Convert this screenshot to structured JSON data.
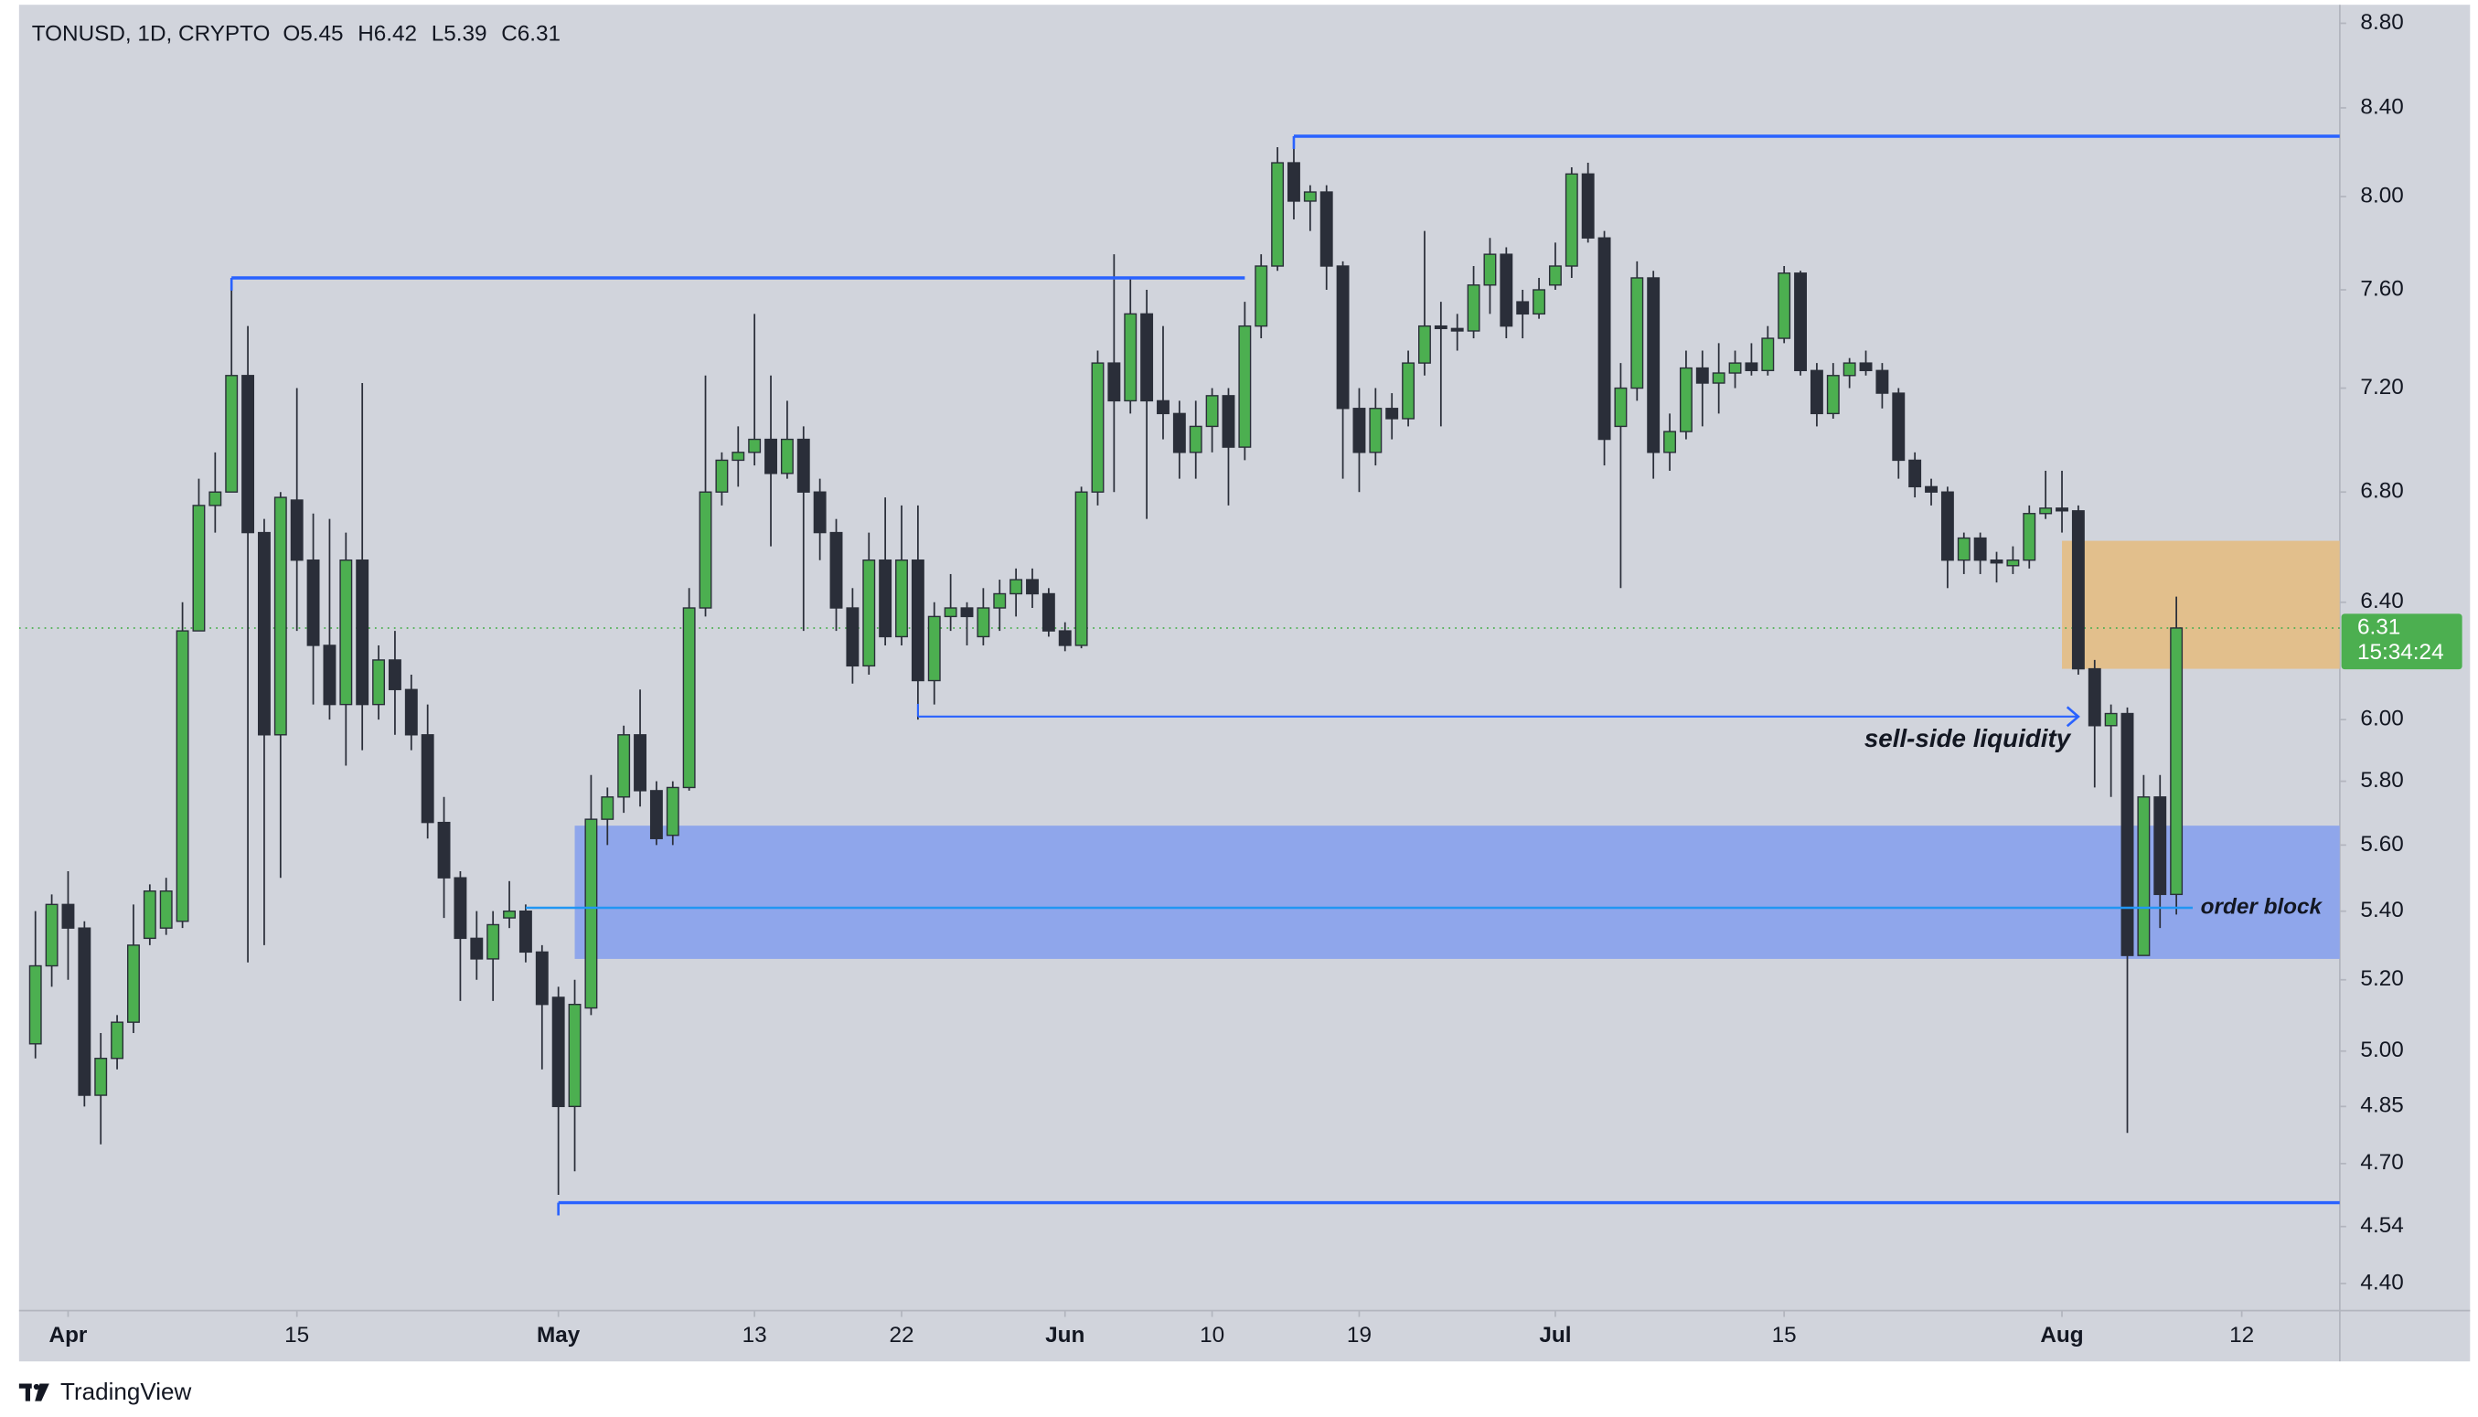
{
  "chart_data": {
    "type": "candlestick",
    "title": "TONUSD, 1D, CRYPTO",
    "header_ohlc": [
      "O5.45",
      "H6.42",
      "L5.39",
      "C6.31"
    ],
    "watermark": "TradingView",
    "log_scale": true,
    "up_color": "#4caf50",
    "down_color": "#2a2e39",
    "wick_color": "#2a2e39",
    "background": "#d1d4dc",
    "x": [
      "Mar 30",
      "Mar 31",
      "Apr 1",
      "Apr 2",
      "Apr 3",
      "Apr 4",
      "Apr 5",
      "Apr 6",
      "Apr 7",
      "Apr 8",
      "Apr 9",
      "Apr 10",
      "Apr 11",
      "Apr 12",
      "Apr 13",
      "Apr 14",
      "Apr 15",
      "Apr 16",
      "Apr 17",
      "Apr 18",
      "Apr 19",
      "Apr 20",
      "Apr 21",
      "Apr 22",
      "Apr 23",
      "Apr 24",
      "Apr 25",
      "Apr 26",
      "Apr 27",
      "Apr 28",
      "Apr 29",
      "Apr 30",
      "May 1",
      "May 2",
      "May 3",
      "May 4",
      "May 5",
      "May 6",
      "May 7",
      "May 8",
      "May 9",
      "May 10",
      "May 11",
      "May 12",
      "May 13",
      "May 14",
      "May 15",
      "May 16",
      "May 17",
      "May 18",
      "May 19",
      "May 20",
      "May 21",
      "May 22",
      "May 23",
      "May 24",
      "May 25",
      "May 26",
      "May 27",
      "May 28",
      "May 29",
      "May 30",
      "May 31",
      "Jun 1",
      "Jun 2",
      "Jun 3",
      "Jun 4",
      "Jun 5",
      "Jun 6",
      "Jun 7",
      "Jun 8",
      "Jun 9",
      "Jun 10",
      "Jun 11",
      "Jun 12",
      "Jun 13",
      "Jun 14",
      "Jun 15",
      "Jun 16",
      "Jun 17",
      "Jun 18",
      "Jun 19",
      "Jun 20",
      "Jun 21",
      "Jun 22",
      "Jun 23",
      "Jun 24",
      "Jun 25",
      "Jun 26",
      "Jun 27",
      "Jun 28",
      "Jun 29",
      "Jun 30",
      "Jul 1",
      "Jul 2",
      "Jul 3",
      "Jul 4",
      "Jul 5",
      "Jul 6",
      "Jul 7",
      "Jul 8",
      "Jul 9",
      "Jul 10",
      "Jul 11",
      "Jul 12",
      "Jul 13",
      "Jul 14",
      "Jul 15",
      "Jul 16",
      "Jul 17",
      "Jul 18",
      "Jul 19",
      "Jul 20",
      "Jul 21",
      "Jul 22",
      "Jul 23",
      "Jul 24",
      "Jul 25",
      "Jul 26",
      "Jul 27",
      "Jul 28",
      "Jul 29",
      "Jul 30",
      "Jul 31",
      "Aug 1",
      "Aug 2",
      "Aug 3",
      "Aug 4",
      "Aug 5",
      "Aug 6",
      "Aug 7",
      "Aug 8"
    ],
    "open": [
      5.02,
      5.24,
      5.42,
      5.35,
      4.88,
      4.98,
      5.08,
      5.32,
      5.35,
      5.37,
      6.3,
      6.75,
      6.8,
      7.25,
      6.65,
      5.95,
      6.77,
      6.55,
      6.25,
      6.05,
      6.55,
      6.05,
      6.2,
      6.1,
      5.95,
      5.67,
      5.5,
      5.32,
      5.26,
      5.38,
      5.4,
      5.28,
      5.15,
      4.85,
      5.12,
      5.68,
      5.75,
      5.95,
      5.77,
      5.63,
      5.78,
      6.38,
      6.8,
      6.92,
      6.95,
      7.0,
      6.87,
      7.0,
      6.8,
      6.65,
      6.38,
      6.18,
      6.55,
      6.28,
      6.55,
      6.13,
      6.35,
      6.38,
      6.28,
      6.38,
      6.43,
      6.48,
      6.43,
      6.3,
      6.25,
      6.8,
      7.3,
      7.15,
      7.5,
      7.15,
      7.1,
      6.95,
      7.05,
      7.17,
      6.97,
      7.45,
      7.7,
      8.15,
      7.98,
      8.02,
      7.7,
      7.12,
      6.95,
      7.12,
      7.08,
      7.3,
      7.45,
      7.44,
      7.43,
      7.62,
      7.75,
      7.55,
      7.5,
      7.62,
      7.7,
      8.1,
      7.82,
      7.05,
      7.2,
      7.65,
      6.95,
      7.03,
      7.28,
      7.22,
      7.26,
      7.3,
      7.27,
      7.4,
      7.67,
      7.27,
      7.1,
      7.25,
      7.3,
      7.27,
      7.18,
      6.92,
      6.82,
      6.8,
      6.55,
      6.63,
      6.55,
      6.53,
      6.55,
      6.72,
      6.74,
      6.73,
      6.17,
      5.98,
      6.02,
      5.27,
      5.75,
      5.45
    ],
    "high": [
      5.4,
      5.45,
      5.52,
      5.37,
      5.05,
      5.1,
      5.42,
      5.48,
      5.5,
      6.4,
      6.85,
      6.95,
      7.65,
      7.45,
      6.7,
      6.8,
      7.2,
      6.72,
      6.7,
      6.65,
      7.22,
      6.25,
      6.3,
      6.15,
      6.05,
      5.75,
      5.52,
      5.4,
      5.4,
      5.49,
      5.42,
      5.3,
      5.18,
      5.2,
      5.82,
      5.78,
      5.98,
      6.1,
      5.8,
      5.8,
      6.45,
      7.25,
      6.95,
      7.05,
      7.5,
      7.25,
      7.15,
      7.05,
      6.85,
      6.7,
      6.45,
      6.65,
      6.78,
      6.75,
      6.75,
      6.4,
      6.5,
      6.4,
      6.45,
      6.48,
      6.52,
      6.52,
      6.45,
      6.33,
      6.82,
      7.35,
      7.75,
      7.65,
      7.6,
      7.45,
      7.15,
      7.15,
      7.2,
      7.2,
      7.55,
      7.75,
      8.22,
      8.27,
      8.05,
      8.05,
      7.72,
      7.2,
      7.2,
      7.18,
      7.35,
      7.85,
      7.55,
      7.5,
      7.7,
      7.82,
      7.78,
      7.6,
      7.65,
      7.8,
      8.13,
      8.15,
      7.85,
      7.3,
      7.72,
      7.68,
      7.1,
      7.35,
      7.35,
      7.38,
      7.35,
      7.38,
      7.45,
      7.7,
      7.68,
      7.3,
      7.3,
      7.32,
      7.35,
      7.3,
      7.2,
      6.95,
      6.85,
      6.82,
      6.65,
      6.65,
      6.58,
      6.6,
      6.75,
      6.88,
      6.88,
      6.75,
      6.2,
      6.05,
      6.04,
      5.82,
      5.82,
      6.42
    ],
    "low": [
      4.98,
      5.18,
      5.2,
      4.85,
      4.75,
      4.95,
      5.05,
      5.3,
      5.33,
      5.35,
      6.3,
      6.65,
      6.8,
      5.25,
      5.3,
      5.5,
      6.3,
      6.05,
      6.0,
      5.85,
      5.9,
      6.0,
      5.95,
      5.9,
      5.62,
      5.38,
      5.14,
      5.2,
      5.14,
      5.35,
      5.25,
      4.95,
      4.62,
      4.68,
      5.1,
      5.6,
      5.7,
      5.72,
      5.6,
      5.6,
      5.77,
      6.35,
      6.75,
      6.82,
      6.9,
      6.6,
      6.85,
      6.3,
      6.55,
      6.3,
      6.12,
      6.15,
      6.25,
      6.25,
      6.0,
      6.05,
      6.3,
      6.25,
      6.25,
      6.3,
      6.35,
      6.38,
      6.28,
      6.23,
      6.24,
      6.75,
      6.8,
      7.1,
      6.7,
      7.0,
      6.85,
      6.85,
      6.95,
      6.75,
      6.92,
      7.4,
      7.68,
      7.9,
      7.85,
      7.6,
      6.85,
      6.8,
      6.9,
      7.0,
      7.05,
      7.25,
      7.05,
      7.35,
      7.4,
      7.5,
      7.4,
      7.4,
      7.48,
      7.6,
      7.65,
      7.8,
      6.9,
      6.45,
      7.15,
      6.85,
      6.88,
      7.0,
      7.05,
      7.1,
      7.2,
      7.25,
      7.25,
      7.38,
      7.25,
      7.05,
      7.08,
      7.2,
      7.25,
      7.12,
      6.85,
      6.78,
      6.75,
      6.45,
      6.5,
      6.5,
      6.47,
      6.5,
      6.52,
      6.7,
      6.65,
      6.15,
      5.78,
      5.75,
      4.78,
      5.27,
      5.35,
      5.39
    ],
    "close": [
      5.24,
      5.42,
      5.35,
      4.88,
      4.98,
      5.08,
      5.3,
      5.46,
      5.46,
      6.3,
      6.75,
      6.8,
      7.25,
      6.65,
      5.95,
      6.78,
      6.55,
      6.25,
      6.05,
      6.55,
      6.05,
      6.2,
      6.1,
      5.95,
      5.67,
      5.5,
      5.32,
      5.26,
      5.36,
      5.4,
      5.28,
      5.13,
      4.85,
      5.13,
      5.68,
      5.75,
      5.95,
      5.77,
      5.62,
      5.78,
      6.38,
      6.8,
      6.92,
      6.95,
      7.0,
      6.87,
      7.0,
      6.8,
      6.65,
      6.38,
      6.18,
      6.55,
      6.28,
      6.55,
      6.13,
      6.35,
      6.38,
      6.35,
      6.38,
      6.43,
      6.48,
      6.43,
      6.3,
      6.25,
      6.8,
      7.3,
      7.15,
      7.5,
      7.15,
      7.1,
      6.95,
      7.05,
      7.17,
      6.97,
      7.45,
      7.7,
      8.15,
      7.98,
      8.02,
      7.7,
      7.12,
      6.95,
      7.12,
      7.08,
      7.3,
      7.45,
      7.44,
      7.43,
      7.62,
      7.75,
      7.45,
      7.5,
      7.6,
      7.7,
      8.1,
      7.82,
      7.0,
      7.2,
      7.65,
      6.95,
      7.03,
      7.28,
      7.22,
      7.26,
      7.3,
      7.27,
      7.4,
      7.67,
      7.27,
      7.1,
      7.25,
      7.3,
      7.27,
      7.18,
      6.92,
      6.82,
      6.8,
      6.55,
      6.63,
      6.55,
      6.54,
      6.55,
      6.72,
      6.74,
      6.73,
      6.17,
      5.98,
      6.02,
      5.27,
      5.75,
      5.45,
      6.31
    ],
    "xlim": [
      "Mar 29",
      "Aug 18"
    ],
    "xticks": [
      {
        "value": "Apr 1",
        "label": "Apr"
      },
      {
        "value": "Apr 15",
        "label": "15"
      },
      {
        "value": "May 1",
        "label": "May"
      },
      {
        "value": "May 13",
        "label": "13"
      },
      {
        "value": "May 22",
        "label": "22"
      },
      {
        "value": "Jun 1",
        "label": "Jun"
      },
      {
        "value": "Jun 10",
        "label": "10"
      },
      {
        "value": "Jun 19",
        "label": "19"
      },
      {
        "value": "Jul 1",
        "label": "Jul"
      },
      {
        "value": "Jul 15",
        "label": "15"
      },
      {
        "value": "Aug 1",
        "label": "Aug"
      },
      {
        "value": "Aug 12",
        "label": "12"
      }
    ],
    "ylim": [
      4.335,
      8.89
    ],
    "yticks": [
      {
        "value": 8.8,
        "label": "8.80"
      },
      {
        "value": 8.4,
        "label": "8.40"
      },
      {
        "value": 8,
        "label": "8.00"
      },
      {
        "value": 7.6,
        "label": "7.60"
      },
      {
        "value": 7.2,
        "label": "7.20"
      },
      {
        "value": 6.8,
        "label": "6.80"
      },
      {
        "value": 6.4,
        "label": "6.40"
      },
      {
        "value": 6,
        "label": "6.00"
      },
      {
        "value": 5.8,
        "label": "5.80"
      },
      {
        "value": 5.6,
        "label": "5.60"
      },
      {
        "value": 5.4,
        "label": "5.40"
      },
      {
        "value": 5.2,
        "label": "5.20"
      },
      {
        "value": 5,
        "label": "5.00"
      },
      4.85,
      {
        "value": 4.7,
        "label": "4.70"
      },
      4.54,
      {
        "value": 4.4,
        "label": "4.40"
      }
    ],
    "last_price": 6.31,
    "countdown": "15:34:24",
    "last_price_color": "#4caf50",
    "zones": [
      {
        "ylim": [
          5.26,
          5.66
        ],
        "from": "May 2",
        "color": "#8fa6eb"
      },
      {
        "ylim": [
          6.17,
          6.62
        ],
        "from": "Aug 1",
        "color": "#e2bf8c"
      }
    ],
    "lines": [
      {
        "y": 7.65,
        "from": "Apr 11",
        "to": "Jun 12",
        "color": "#2962ff"
      },
      {
        "y": 8.27,
        "from": "Jun 15",
        "color": "#2962ff"
      },
      {
        "y": 4.6,
        "from": "May 1",
        "color": "#2962ff"
      }
    ],
    "arrow": {
      "y": 6.01,
      "from": "May 23",
      "to": "Aug 2",
      "label": "sell-side liquidity",
      "color": "#2962ff"
    },
    "order_block": {
      "y": 5.41,
      "from": "Apr 29",
      "to": "Aug 9",
      "label": "order block",
      "color": "#2196f3"
    }
  }
}
